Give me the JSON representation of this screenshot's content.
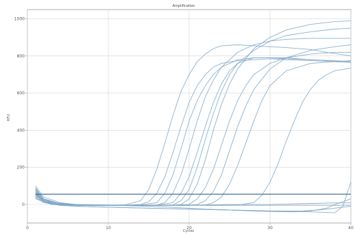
{
  "chart_data": {
    "type": "line",
    "title": "Amplification",
    "xlabel": "Cycles",
    "ylabel": "RFU",
    "xlim": [
      0,
      40
    ],
    "ylim": [
      -100,
      1050
    ],
    "xticks": [
      0,
      10,
      20,
      30,
      40
    ],
    "yticks": [
      0,
      200,
      400,
      600,
      800,
      1000
    ],
    "grid": true,
    "legend": "none",
    "colors": {
      "series": "#7fa7c9",
      "threshold": "#2f5f8a",
      "grid": "#d6d6d6",
      "axis": "#9a9a9a"
    },
    "threshold": 55,
    "series": [
      {
        "values": [
          [
            1,
            60
          ],
          [
            2,
            20
          ],
          [
            4,
            0
          ],
          [
            6,
            -5
          ],
          [
            8,
            -5
          ],
          [
            10,
            -5
          ],
          [
            12,
            -3
          ],
          [
            14,
            20
          ],
          [
            15,
            80
          ],
          [
            16,
            190
          ],
          [
            17,
            330
          ],
          [
            18,
            480
          ],
          [
            19,
            610
          ],
          [
            20,
            700
          ],
          [
            21,
            770
          ],
          [
            22,
            810
          ],
          [
            23,
            840
          ],
          [
            24,
            855
          ],
          [
            26,
            860
          ],
          [
            28,
            855
          ],
          [
            30,
            850
          ],
          [
            32,
            845
          ],
          [
            35,
            835
          ],
          [
            37,
            820
          ],
          [
            40,
            800
          ]
        ]
      },
      {
        "values": [
          [
            1,
            80
          ],
          [
            2,
            30
          ],
          [
            4,
            5
          ],
          [
            6,
            0
          ],
          [
            8,
            -5
          ],
          [
            10,
            -5
          ],
          [
            12,
            -5
          ],
          [
            14,
            0
          ],
          [
            15,
            15
          ],
          [
            16,
            60
          ],
          [
            17,
            150
          ],
          [
            18,
            280
          ],
          [
            19,
            420
          ],
          [
            20,
            550
          ],
          [
            21,
            640
          ],
          [
            22,
            700
          ],
          [
            23,
            740
          ],
          [
            24,
            760
          ],
          [
            26,
            775
          ],
          [
            28,
            780
          ],
          [
            30,
            785
          ],
          [
            32,
            780
          ],
          [
            35,
            775
          ],
          [
            40,
            765
          ]
        ]
      },
      {
        "values": [
          [
            1,
            100
          ],
          [
            2,
            40
          ],
          [
            4,
            10
          ],
          [
            6,
            0
          ],
          [
            8,
            -5
          ],
          [
            10,
            -5
          ],
          [
            12,
            -5
          ],
          [
            14,
            -3
          ],
          [
            16,
            10
          ],
          [
            17,
            60
          ],
          [
            18,
            160
          ],
          [
            19,
            300
          ],
          [
            20,
            450
          ],
          [
            21,
            560
          ],
          [
            22,
            640
          ],
          [
            23,
            700
          ],
          [
            24,
            740
          ],
          [
            26,
            780
          ],
          [
            28,
            790
          ],
          [
            30,
            790
          ],
          [
            32,
            785
          ],
          [
            35,
            780
          ],
          [
            40,
            770
          ]
        ]
      },
      {
        "values": [
          [
            1,
            55
          ],
          [
            2,
            15
          ],
          [
            4,
            0
          ],
          [
            6,
            -3
          ],
          [
            8,
            -5
          ],
          [
            10,
            -5
          ],
          [
            12,
            -5
          ],
          [
            14,
            -5
          ],
          [
            16,
            -3
          ],
          [
            17,
            10
          ],
          [
            18,
            60
          ],
          [
            19,
            160
          ],
          [
            20,
            300
          ],
          [
            21,
            450
          ],
          [
            22,
            580
          ],
          [
            23,
            670
          ],
          [
            24,
            740
          ],
          [
            26,
            820
          ],
          [
            28,
            860
          ],
          [
            30,
            880
          ],
          [
            32,
            890
          ],
          [
            35,
            895
          ],
          [
            40,
            895
          ]
        ]
      },
      {
        "values": [
          [
            1,
            65
          ],
          [
            2,
            20
          ],
          [
            4,
            0
          ],
          [
            6,
            -5
          ],
          [
            8,
            -5
          ],
          [
            10,
            -5
          ],
          [
            12,
            -5
          ],
          [
            14,
            -5
          ],
          [
            16,
            -5
          ],
          [
            18,
            10
          ],
          [
            19,
            60
          ],
          [
            20,
            150
          ],
          [
            21,
            280
          ],
          [
            22,
            420
          ],
          [
            23,
            550
          ],
          [
            24,
            650
          ],
          [
            25,
            720
          ],
          [
            26,
            760
          ],
          [
            28,
            790
          ],
          [
            30,
            790
          ],
          [
            32,
            790
          ],
          [
            35,
            780
          ],
          [
            40,
            770
          ]
        ]
      },
      {
        "values": [
          [
            1,
            75
          ],
          [
            2,
            25
          ],
          [
            4,
            5
          ],
          [
            6,
            0
          ],
          [
            8,
            -5
          ],
          [
            10,
            -5
          ],
          [
            12,
            -5
          ],
          [
            14,
            -5
          ],
          [
            16,
            -5
          ],
          [
            18,
            -3
          ],
          [
            19,
            20
          ],
          [
            20,
            80
          ],
          [
            21,
            200
          ],
          [
            22,
            350
          ],
          [
            23,
            490
          ],
          [
            24,
            610
          ],
          [
            25,
            700
          ],
          [
            26,
            760
          ],
          [
            28,
            830
          ],
          [
            30,
            880
          ],
          [
            32,
            910
          ],
          [
            35,
            930
          ],
          [
            38,
            945
          ],
          [
            40,
            950
          ]
        ]
      },
      {
        "values": [
          [
            1,
            50
          ],
          [
            2,
            15
          ],
          [
            4,
            0
          ],
          [
            6,
            -5
          ],
          [
            8,
            -5
          ],
          [
            10,
            -5
          ],
          [
            12,
            -5
          ],
          [
            14,
            -5
          ],
          [
            16,
            -5
          ],
          [
            18,
            -5
          ],
          [
            19,
            0
          ],
          [
            20,
            30
          ],
          [
            21,
            110
          ],
          [
            22,
            240
          ],
          [
            23,
            400
          ],
          [
            24,
            540
          ],
          [
            25,
            650
          ],
          [
            26,
            730
          ],
          [
            28,
            840
          ],
          [
            30,
            900
          ],
          [
            32,
            940
          ],
          [
            35,
            970
          ],
          [
            38,
            985
          ],
          [
            40,
            990
          ]
        ]
      },
      {
        "values": [
          [
            1,
            90
          ],
          [
            2,
            30
          ],
          [
            4,
            5
          ],
          [
            6,
            0
          ],
          [
            8,
            -5
          ],
          [
            10,
            -5
          ],
          [
            12,
            -5
          ],
          [
            14,
            -5
          ],
          [
            16,
            -5
          ],
          [
            18,
            -5
          ],
          [
            20,
            0
          ],
          [
            21,
            30
          ],
          [
            22,
            90
          ],
          [
            23,
            190
          ],
          [
            24,
            320
          ],
          [
            25,
            450
          ],
          [
            26,
            560
          ],
          [
            27,
            640
          ],
          [
            28,
            700
          ],
          [
            30,
            760
          ],
          [
            32,
            790
          ],
          [
            35,
            810
          ],
          [
            38,
            820
          ],
          [
            40,
            820
          ]
        ]
      },
      {
        "values": [
          [
            1,
            70
          ],
          [
            2,
            20
          ],
          [
            4,
            0
          ],
          [
            6,
            -5
          ],
          [
            8,
            -5
          ],
          [
            10,
            -5
          ],
          [
            12,
            -5
          ],
          [
            14,
            -5
          ],
          [
            16,
            -5
          ],
          [
            18,
            -5
          ],
          [
            20,
            -5
          ],
          [
            21,
            0
          ],
          [
            22,
            20
          ],
          [
            23,
            70
          ],
          [
            24,
            160
          ],
          [
            25,
            290
          ],
          [
            26,
            420
          ],
          [
            27,
            530
          ],
          [
            28,
            620
          ],
          [
            30,
            730
          ],
          [
            32,
            790
          ],
          [
            35,
            830
          ],
          [
            38,
            850
          ],
          [
            40,
            860
          ]
        ]
      },
      {
        "values": [
          [
            1,
            60
          ],
          [
            2,
            15
          ],
          [
            4,
            0
          ],
          [
            6,
            -5
          ],
          [
            8,
            -5
          ],
          [
            10,
            -5
          ],
          [
            12,
            -5
          ],
          [
            14,
            -5
          ],
          [
            16,
            -5
          ],
          [
            18,
            -5
          ],
          [
            20,
            -5
          ],
          [
            22,
            -3
          ],
          [
            23,
            10
          ],
          [
            24,
            40
          ],
          [
            25,
            110
          ],
          [
            26,
            210
          ],
          [
            27,
            330
          ],
          [
            28,
            450
          ],
          [
            29,
            560
          ],
          [
            30,
            640
          ],
          [
            32,
            720
          ],
          [
            35,
            760
          ],
          [
            38,
            770
          ],
          [
            40,
            775
          ]
        ]
      },
      {
        "values": [
          [
            1,
            85
          ],
          [
            2,
            25
          ],
          [
            4,
            5
          ],
          [
            6,
            0
          ],
          [
            8,
            -5
          ],
          [
            10,
            -5
          ],
          [
            12,
            -5
          ],
          [
            14,
            -5
          ],
          [
            16,
            -5
          ],
          [
            18,
            -5
          ],
          [
            20,
            -5
          ],
          [
            22,
            -5
          ],
          [
            24,
            -5
          ],
          [
            26,
            -3
          ],
          [
            28,
            10
          ],
          [
            29,
            50
          ],
          [
            30,
            120
          ],
          [
            31,
            220
          ],
          [
            32,
            340
          ],
          [
            33,
            450
          ],
          [
            34,
            550
          ],
          [
            35,
            620
          ],
          [
            36,
            670
          ],
          [
            37,
            700
          ],
          [
            38,
            720
          ],
          [
            40,
            735
          ]
        ]
      },
      {
        "values": [
          [
            1,
            40
          ],
          [
            2,
            10
          ],
          [
            4,
            -5
          ],
          [
            6,
            -10
          ],
          [
            10,
            -15
          ],
          [
            15,
            -20
          ],
          [
            20,
            -25
          ],
          [
            25,
            -30
          ],
          [
            30,
            -35
          ],
          [
            35,
            -40
          ],
          [
            38,
            -45
          ],
          [
            39,
            -10
          ],
          [
            40,
            120
          ]
        ]
      },
      {
        "values": [
          [
            1,
            45
          ],
          [
            3,
            0
          ],
          [
            6,
            -10
          ],
          [
            10,
            -15
          ],
          [
            15,
            -20
          ],
          [
            20,
            -25
          ],
          [
            25,
            -30
          ],
          [
            30,
            -35
          ],
          [
            34,
            -35
          ],
          [
            36,
            -30
          ],
          [
            38,
            -20
          ],
          [
            40,
            -10
          ]
        ]
      },
      {
        "values": [
          [
            1,
            30
          ],
          [
            3,
            0
          ],
          [
            6,
            -5
          ],
          [
            10,
            -5
          ],
          [
            15,
            -5
          ],
          [
            20,
            -5
          ],
          [
            25,
            0
          ],
          [
            30,
            0
          ],
          [
            35,
            5
          ],
          [
            38,
            8
          ],
          [
            40,
            10
          ]
        ]
      },
      {
        "values": [
          [
            1,
            35
          ],
          [
            3,
            5
          ],
          [
            6,
            0
          ],
          [
            10,
            -5
          ],
          [
            15,
            -10
          ],
          [
            20,
            -20
          ],
          [
            22,
            -25
          ],
          [
            25,
            -30
          ],
          [
            28,
            -35
          ],
          [
            30,
            -38
          ],
          [
            33,
            -40
          ],
          [
            35,
            -35
          ],
          [
            37,
            -20
          ],
          [
            38,
            0
          ],
          [
            40,
            30
          ]
        ]
      },
      {
        "values": [
          [
            1,
            50
          ],
          [
            3,
            10
          ],
          [
            6,
            0
          ],
          [
            10,
            -3
          ],
          [
            15,
            -5
          ],
          [
            20,
            -5
          ],
          [
            25,
            -5
          ],
          [
            30,
            -5
          ],
          [
            35,
            -5
          ],
          [
            40,
            -5
          ]
        ]
      }
    ]
  }
}
